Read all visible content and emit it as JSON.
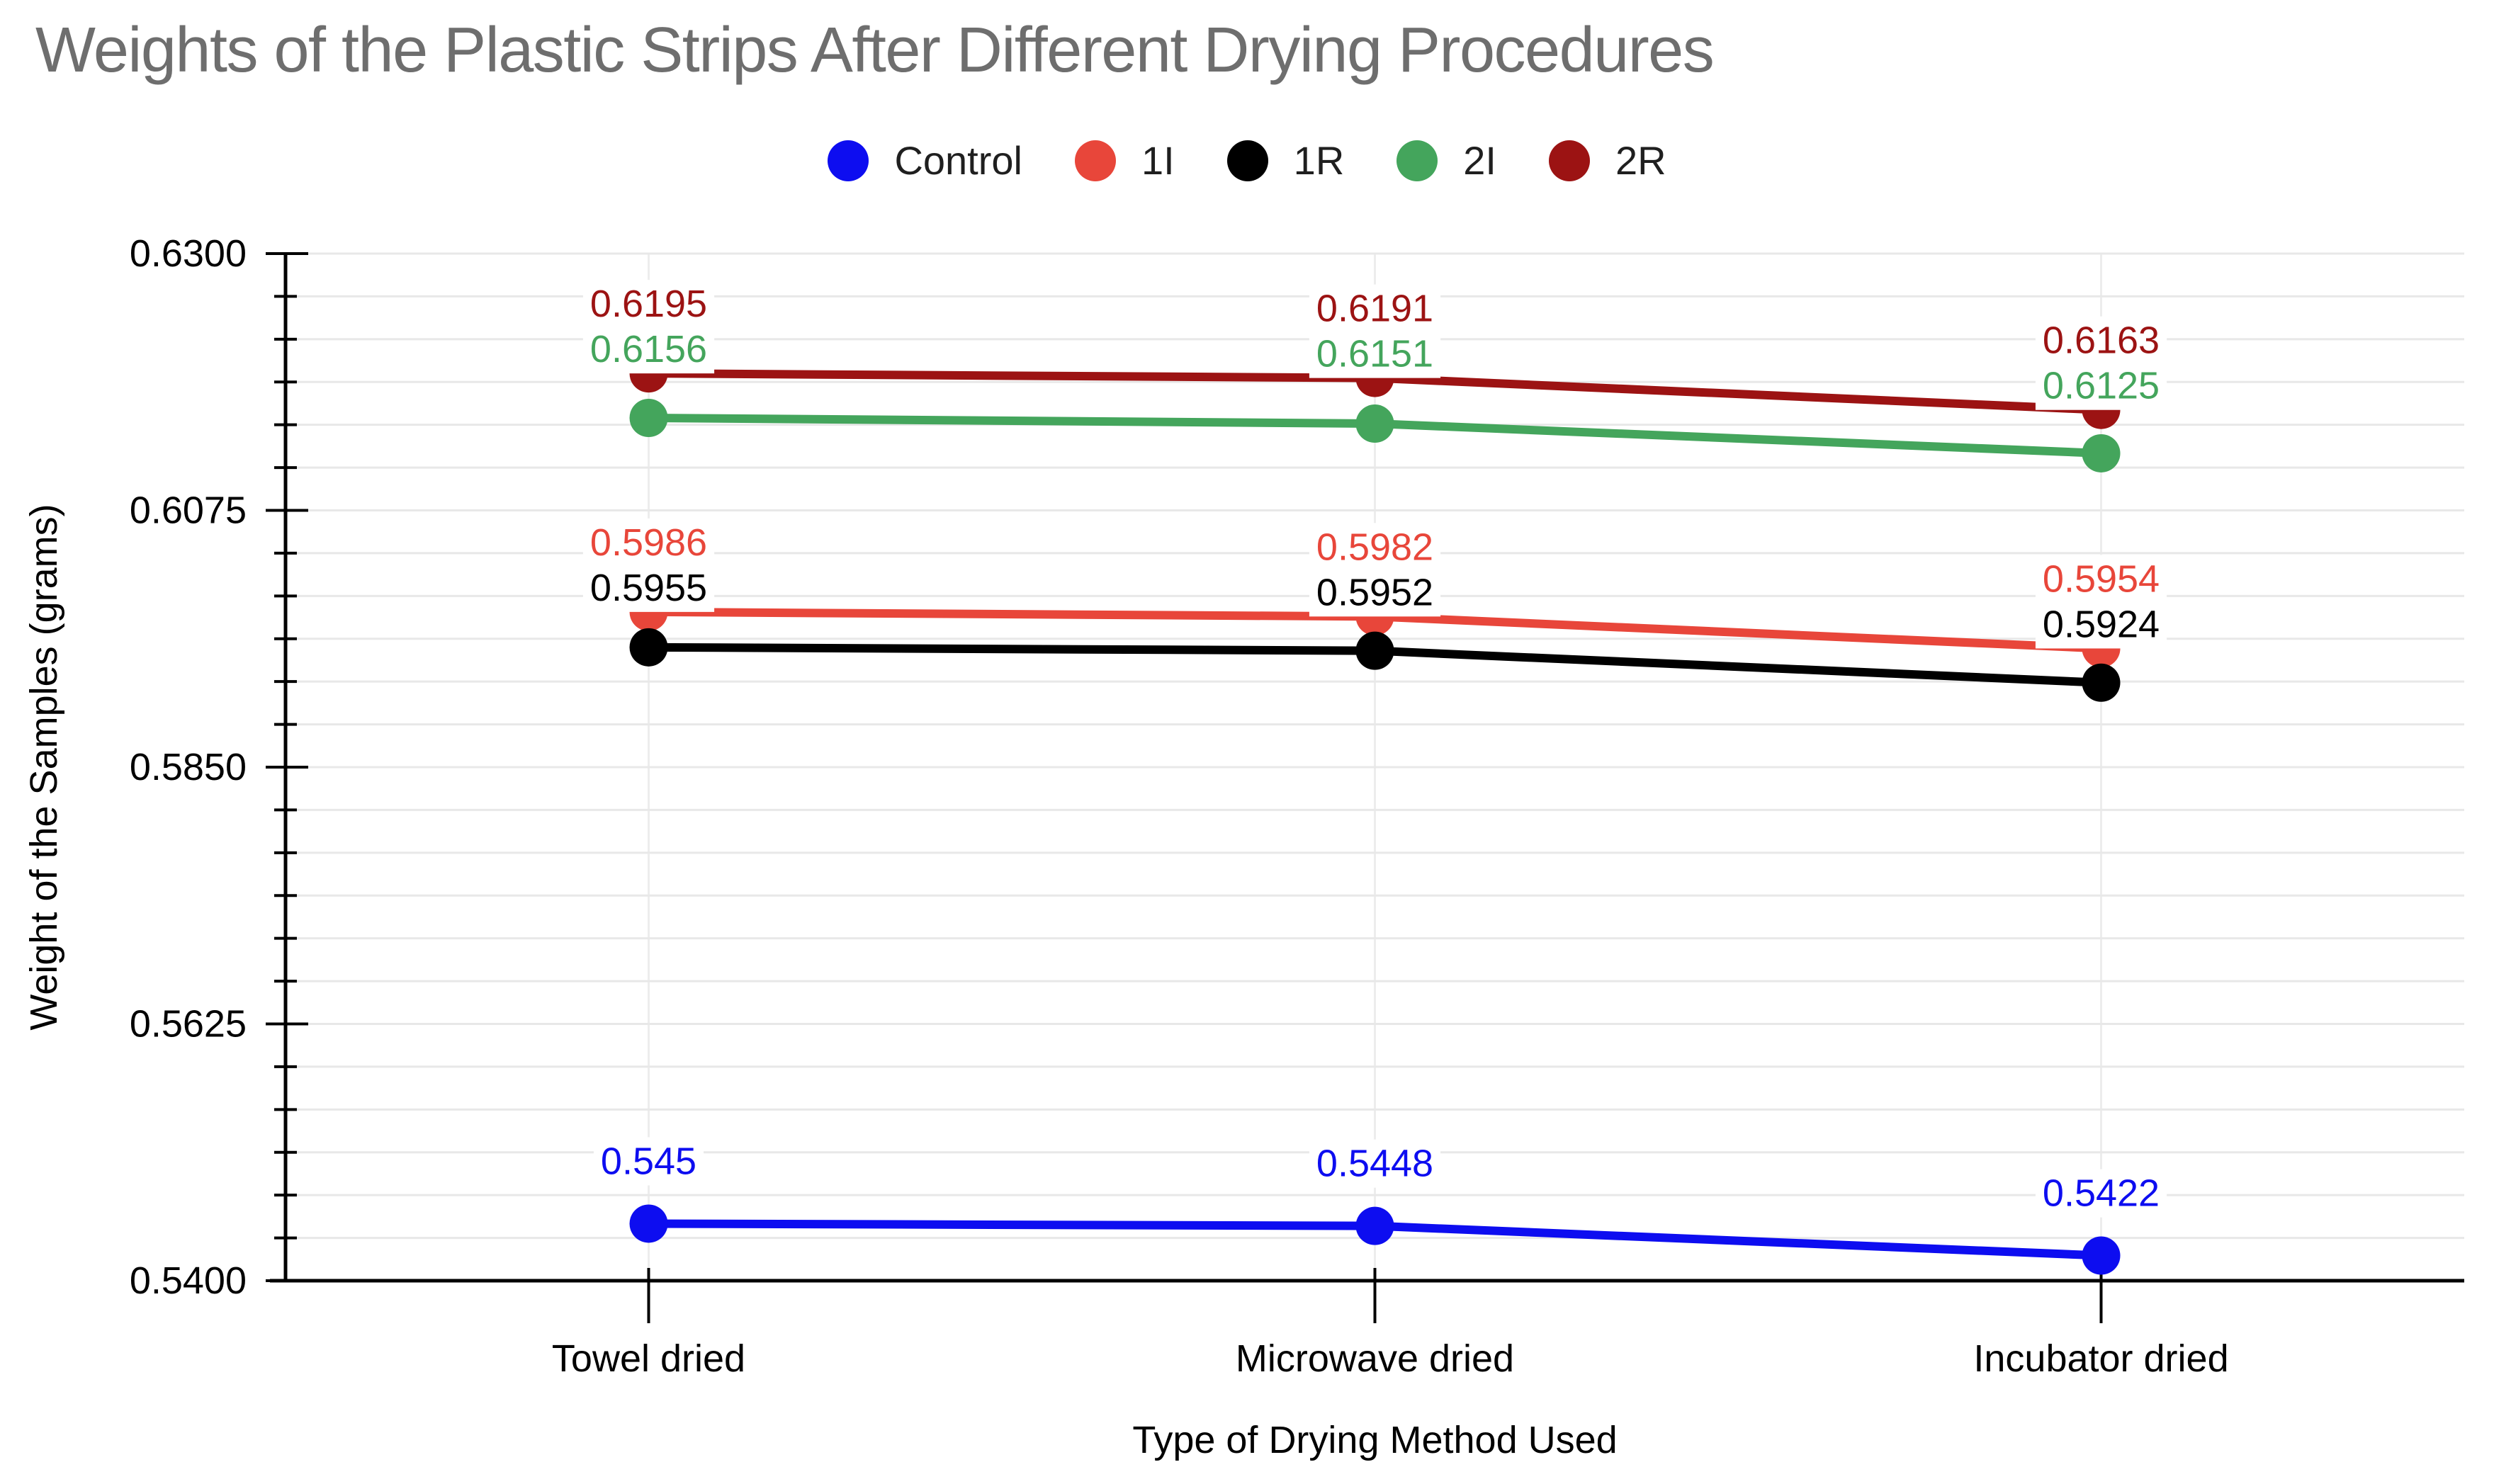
{
  "chart_data": {
    "type": "line",
    "title": "Weights of the Plastic Strips After Different Drying Procedures",
    "xlabel": "Type of Drying Method Used",
    "ylabel": "Weight of the Samples (grams)",
    "categories": [
      "Towel dried",
      "Microwave dried",
      "Incubator dried"
    ],
    "series": [
      {
        "name": "Control",
        "color": "#0d0df0",
        "values": [
          0.545,
          0.5448,
          0.5422
        ],
        "labels": [
          "0.545",
          "0.5448",
          "0.5422"
        ]
      },
      {
        "name": "1I",
        "color": "#e8463a",
        "values": [
          0.5986,
          0.5982,
          0.5954
        ],
        "labels": [
          "0.5986",
          "0.5982",
          "0.5954"
        ]
      },
      {
        "name": "1R",
        "color": "#000000",
        "values": [
          0.5955,
          0.5952,
          0.5924
        ],
        "labels": [
          "0.5955",
          "0.5952",
          "0.5924"
        ]
      },
      {
        "name": "2I",
        "color": "#44a55c",
        "values": [
          0.6156,
          0.6151,
          0.6125
        ],
        "labels": [
          "0.6156",
          "0.6151",
          "0.6125"
        ]
      },
      {
        "name": "2R",
        "color": "#9c1313",
        "values": [
          0.6195,
          0.6191,
          0.6163
        ],
        "labels": [
          "0.6195",
          "0.6191",
          "0.6163"
        ]
      }
    ],
    "y_axis": {
      "min": 0.54,
      "max": 0.63,
      "major_step": 0.0225,
      "minor_step": 0.00375,
      "major_tick_labels": [
        "0.6300",
        "0.6075",
        "0.5850",
        "0.5625",
        "0.5400"
      ]
    },
    "legend_position": "top",
    "grid": true
  },
  "colors": {
    "background": "#ffffff",
    "title_text": "#6e6e6e",
    "legend_text": "#1f1f1f",
    "axis": "#000000",
    "tick_text": "#000000",
    "gridline": "#e8e8e8",
    "category_gridline": "#ededed",
    "data_label_halo": "#ffffff"
  }
}
